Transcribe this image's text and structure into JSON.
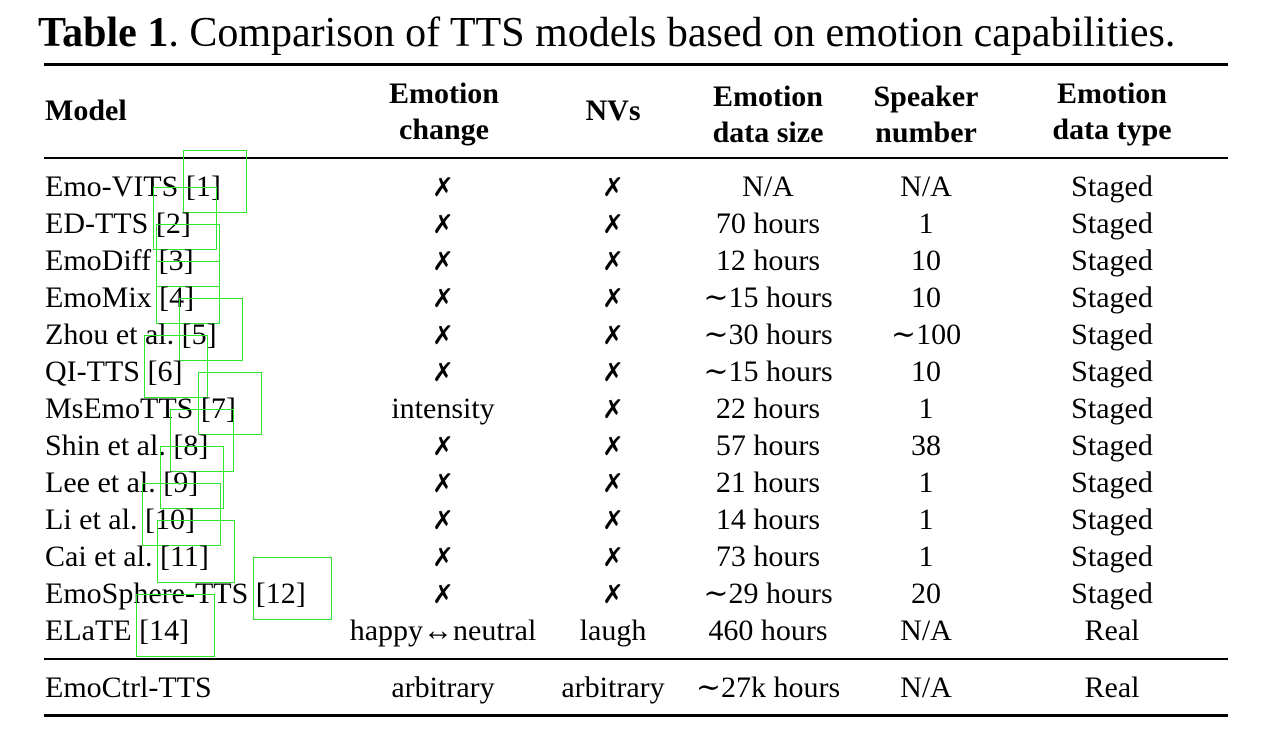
{
  "caption": {
    "label": "Table 1",
    "text": ". Comparison of TTS models based on emotion capabilities."
  },
  "headers": {
    "model": "Model",
    "emotion_change": [
      "Emotion",
      "change"
    ],
    "nvs": "NVs",
    "data_size": [
      "Emotion",
      "data size"
    ],
    "speaker_number": [
      "Speaker",
      "number"
    ],
    "data_type": [
      "Emotion",
      "data type"
    ]
  },
  "rows": [
    {
      "model": "Emo-VITS",
      "ref": "[1]",
      "emotion_change": "✗",
      "nvs": "✗",
      "data_size": "N/A",
      "speakers": "N/A",
      "data_type": "Staged"
    },
    {
      "model": "ED-TTS",
      "ref": "[2]",
      "emotion_change": "✗",
      "nvs": "✗",
      "data_size": "70 hours",
      "speakers": "1",
      "data_type": "Staged"
    },
    {
      "model": "EmoDiff",
      "ref": "[3]",
      "emotion_change": "✗",
      "nvs": "✗",
      "data_size": "12 hours",
      "speakers": "10",
      "data_type": "Staged"
    },
    {
      "model": "EmoMix",
      "ref": "[4]",
      "emotion_change": "✗",
      "nvs": "✗",
      "data_size": "∼15 hours",
      "speakers": "10",
      "data_type": "Staged"
    },
    {
      "model": "Zhou et al.",
      "ref": "[5]",
      "emotion_change": "✗",
      "nvs": "✗",
      "data_size": "∼30 hours",
      "speakers": "∼100",
      "data_type": "Staged"
    },
    {
      "model": "QI-TTS",
      "ref": "[6]",
      "emotion_change": "✗",
      "nvs": "✗",
      "data_size": "∼15 hours",
      "speakers": "10",
      "data_type": "Staged"
    },
    {
      "model": "MsEmoTTS",
      "ref": "[7]",
      "emotion_change": "intensity",
      "nvs": "✗",
      "data_size": "22 hours",
      "speakers": "1",
      "data_type": "Staged"
    },
    {
      "model": "Shin et al.",
      "ref": "[8]",
      "emotion_change": "✗",
      "nvs": "✗",
      "data_size": "57 hours",
      "speakers": "38",
      "data_type": "Staged"
    },
    {
      "model": "Lee et al.",
      "ref": "[9]",
      "emotion_change": "✗",
      "nvs": "✗",
      "data_size": "21 hours",
      "speakers": "1",
      "data_type": "Staged"
    },
    {
      "model": "Li et al.",
      "ref": "[10]",
      "emotion_change": "✗",
      "nvs": "✗",
      "data_size": "14 hours",
      "speakers": "1",
      "data_type": "Staged"
    },
    {
      "model": "Cai et al.",
      "ref": "[11]",
      "emotion_change": "✗",
      "nvs": "✗",
      "data_size": "73 hours",
      "speakers": "1",
      "data_type": "Staged"
    },
    {
      "model": "EmoSphere-TTS",
      "ref": "[12]",
      "emotion_change": "✗",
      "nvs": "✗",
      "data_size": "∼29 hours",
      "speakers": "20",
      "data_type": "Staged"
    },
    {
      "model": "ELaTE",
      "ref": "[14]",
      "emotion_change": "happy↔neutral",
      "nvs": "laugh",
      "data_size": "460 hours",
      "speakers": "N/A",
      "data_type": "Real"
    }
  ],
  "final_row": {
    "model": "EmoCtrl-TTS",
    "emotion_change": "arbitrary",
    "nvs": "arbitrary",
    "data_size": "∼27k hours",
    "speakers": "N/A",
    "data_type": "Real"
  }
}
